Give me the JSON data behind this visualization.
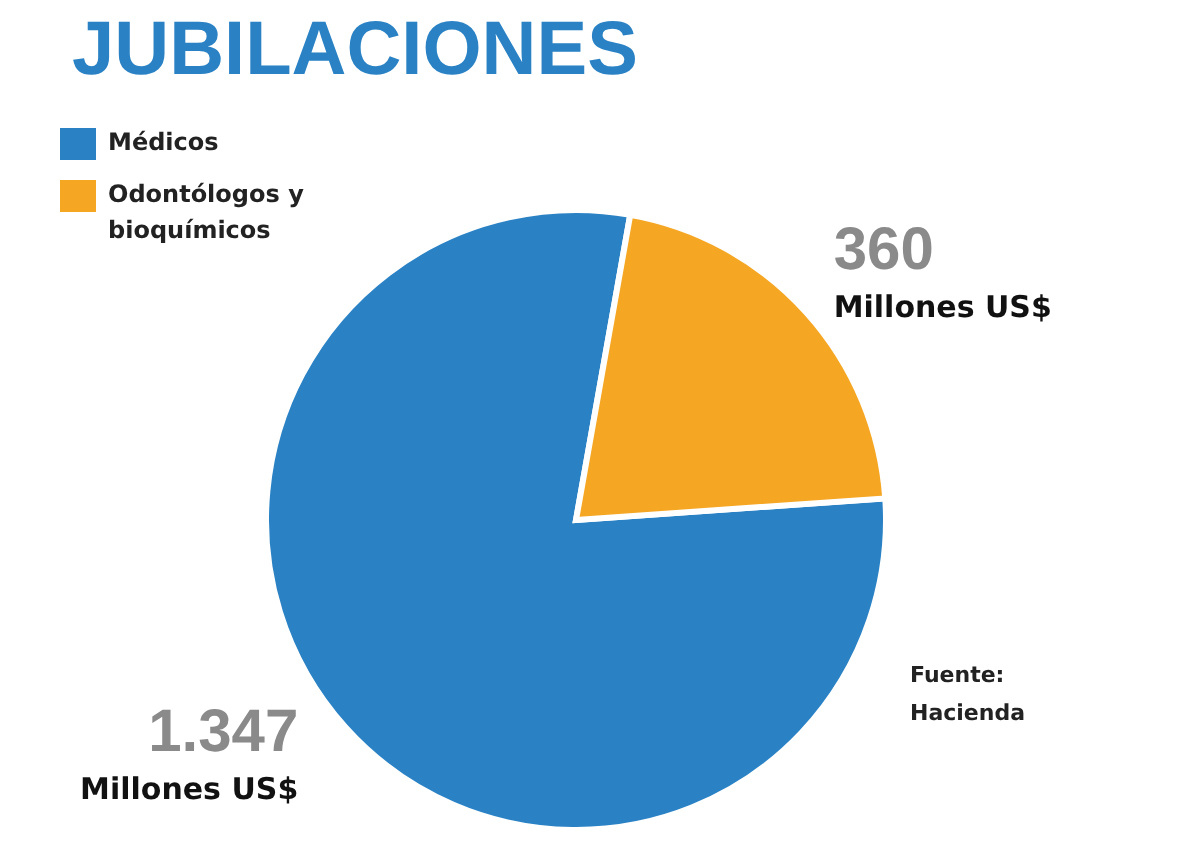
{
  "chart_data": {
    "type": "pie",
    "title": "JUBILACIONES",
    "categories": [
      "Médicos",
      "Odontólogos y bioquímicos"
    ],
    "values": [
      1347,
      360
    ],
    "colors": [
      "#2a82c5",
      "#f5a623"
    ],
    "value_labels": [
      "1.347",
      "360"
    ],
    "annotations": [
      "Millones US$",
      "Millones US$",
      "Fuente: Hacienda"
    ],
    "legend": "top left"
  }
}
